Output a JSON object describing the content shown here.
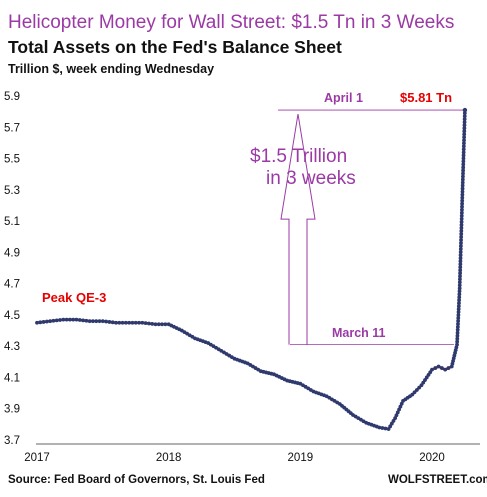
{
  "chart_data": {
    "type": "line",
    "title": "Helicopter Money for Wall Street: $1.5 Tn in 3 Weeks",
    "subtitle": "Total Assets on the Fed's Balance Sheet",
    "ylabel": "Trillion $, week ending Wednesday",
    "source": "Source: Fed Board of Governors, St. Louis Fed",
    "watermark": "WOLFSTREET.com",
    "ylim": [
      3.7,
      5.9
    ],
    "xlim": [
      2017.0,
      2020.4
    ],
    "yticks": [
      "3.7",
      "3.9",
      "4.1",
      "4.3",
      "4.5",
      "4.7",
      "4.9",
      "5.1",
      "5.3",
      "5.5",
      "5.7",
      "5.9"
    ],
    "xticks": [
      "2017",
      "2018",
      "2019",
      "2020"
    ],
    "grid": false,
    "series": [
      {
        "x": [
          2017.0,
          2017.1,
          2017.2,
          2017.3,
          2017.4,
          2017.5,
          2017.6,
          2017.7,
          2017.8,
          2017.9,
          2018.0,
          2018.1,
          2018.2,
          2018.3,
          2018.4,
          2018.5,
          2018.6,
          2018.7,
          2018.8,
          2018.9,
          2019.0,
          2019.1,
          2019.2,
          2019.3,
          2019.4,
          2019.5,
          2019.6,
          2019.67,
          2019.72,
          2019.78,
          2019.85,
          2019.92,
          2020.0,
          2020.05,
          2020.1,
          2020.15,
          2020.19,
          2020.21,
          2020.23,
          2020.25
        ],
        "values": [
          4.45,
          4.46,
          4.47,
          4.47,
          4.46,
          4.46,
          4.45,
          4.45,
          4.45,
          4.44,
          4.44,
          4.4,
          4.35,
          4.32,
          4.27,
          4.22,
          4.19,
          4.14,
          4.12,
          4.08,
          4.06,
          4.01,
          3.98,
          3.93,
          3.86,
          3.81,
          3.78,
          3.77,
          3.84,
          3.95,
          3.99,
          4.05,
          4.15,
          4.17,
          4.15,
          4.17,
          4.31,
          4.67,
          5.25,
          5.81
        ]
      }
    ],
    "line_color": "#e60000",
    "marker_color": "#2e3a6e",
    "annotations": {
      "peak": "Peak QE-3",
      "april": "April 1",
      "march": "March 11",
      "last_value": "$5.81 Tn",
      "arrow_line1": "$1.5 Trillion",
      "arrow_line2": "in 3 weeks"
    },
    "reference_levels": {
      "april": 5.81,
      "march": 4.31
    },
    "accent_color": "#9b3aa5"
  }
}
